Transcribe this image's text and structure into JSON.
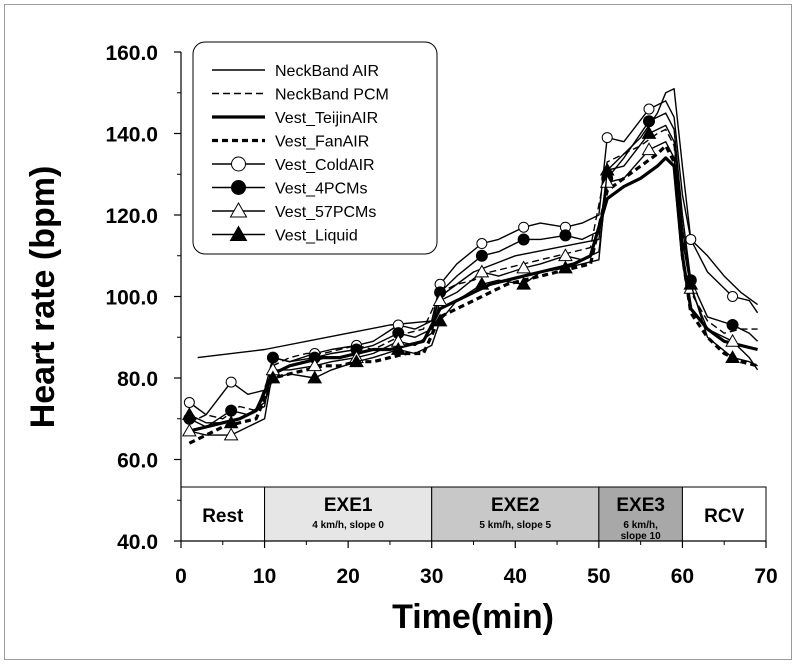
{
  "chart_data": {
    "type": "line",
    "xlabel": "Time(min)",
    "ylabel": "Heart rate (bpm)",
    "xlim": [
      0,
      70
    ],
    "ylim": [
      40,
      160
    ],
    "xticks": [
      "0",
      "10",
      "20",
      "30",
      "40",
      "50",
      "60",
      "70"
    ],
    "yticks": [
      "40.0",
      "60.0",
      "80.0",
      "100.0",
      "120.0",
      "140.0",
      "160.0"
    ],
    "grid": false,
    "legend_position": "top-left",
    "phases": [
      {
        "label": "Rest",
        "sub": "",
        "x0": 0,
        "x1": 10,
        "fill": "#ffffff"
      },
      {
        "label": "EXE1",
        "sub": "4 km/h, slope 0",
        "x0": 10,
        "x1": 30,
        "fill": "#e6e6e6"
      },
      {
        "label": "EXE2",
        "sub": "5 km/h, slope 5",
        "x0": 30,
        "x1": 50,
        "fill": "#c8c8c8"
      },
      {
        "label": "EXE3",
        "sub": "6 km/h,",
        "sub2": "slope 10",
        "x0": 50,
        "x1": 60,
        "fill": "#a8a8a8"
      },
      {
        "label": "RCV",
        "sub": "",
        "x0": 60,
        "x1": 70,
        "fill": "#ffffff"
      }
    ],
    "series": [
      {
        "name": "NeckBand AIR",
        "style": "thin",
        "marker": "none",
        "x": [
          2,
          10,
          20,
          25,
          30,
          31,
          35,
          40,
          45,
          50,
          51,
          55,
          57,
          58,
          59,
          60,
          61,
          63,
          65,
          67,
          69
        ],
        "y": [
          85,
          87,
          91,
          93,
          94,
          100,
          106,
          110,
          112,
          114,
          131,
          139,
          145,
          150,
          151,
          132,
          114,
          110,
          105,
          101,
          98
        ]
      },
      {
        "name": "NeckBand PCM",
        "style": "dashed",
        "marker": "none",
        "x": [
          1,
          3,
          5,
          7,
          9,
          11,
          13,
          15,
          17,
          19,
          21,
          23,
          25,
          27,
          29,
          31,
          33,
          35,
          37,
          39,
          41,
          43,
          45,
          47,
          49,
          51,
          53,
          55,
          57,
          58,
          59,
          60,
          61,
          63,
          65,
          67,
          69
        ],
        "y": [
          69,
          71,
          70,
          73,
          72,
          83,
          85,
          86,
          86,
          87,
          88,
          87,
          89,
          91,
          92,
          101,
          103,
          104,
          106,
          107,
          108,
          109,
          110,
          111,
          112,
          133,
          135,
          137,
          140,
          141,
          137,
          116,
          101,
          94,
          91,
          92,
          92
        ]
      },
      {
        "name": "Vest_TeijinAIR",
        "style": "thick",
        "marker": "none",
        "x": [
          1,
          3,
          5,
          7,
          9,
          11,
          13,
          15,
          17,
          19,
          21,
          23,
          25,
          27,
          29,
          31,
          33,
          35,
          37,
          39,
          41,
          43,
          45,
          47,
          49,
          51,
          53,
          55,
          57,
          58,
          59,
          60,
          61,
          63,
          65,
          67,
          69
        ],
        "y": [
          67,
          68,
          69,
          70,
          72,
          81,
          83,
          84,
          85,
          85,
          86,
          87,
          87,
          88,
          89,
          97,
          99,
          101,
          103,
          104,
          105,
          106,
          107,
          108,
          110,
          124,
          127,
          129,
          132,
          134,
          132,
          110,
          97,
          92,
          89,
          88,
          87
        ]
      },
      {
        "name": "Vest_FanAIR",
        "style": "thickdashed",
        "marker": "none",
        "x": [
          1,
          3,
          5,
          7,
          9,
          11,
          13,
          15,
          17,
          19,
          21,
          23,
          25,
          27,
          29,
          31,
          33,
          35,
          37,
          39,
          41,
          43,
          45,
          47,
          49,
          51,
          53,
          55,
          57,
          58,
          59,
          60,
          61,
          63,
          65,
          67,
          69
        ],
        "y": [
          64,
          66,
          68,
          69,
          70,
          80,
          81,
          82,
          83,
          83,
          84,
          84,
          85,
          86,
          86,
          95,
          97,
          99,
          101,
          103,
          104,
          105,
          106,
          107,
          108,
          126,
          129,
          132,
          135,
          137,
          133,
          110,
          96,
          90,
          86,
          84,
          83
        ]
      },
      {
        "name": "Vest_ColdAIR",
        "style": "thin",
        "marker": "circle-open",
        "x": [
          1,
          3,
          6,
          8,
          10,
          11,
          13,
          16,
          18,
          21,
          23,
          26,
          28,
          30,
          31,
          33,
          36,
          38,
          41,
          43,
          46,
          48,
          50,
          51,
          53,
          56,
          58,
          59,
          60,
          61,
          63,
          66,
          68,
          69
        ],
        "y": [
          74,
          71,
          79,
          76,
          77,
          85,
          84,
          86,
          87,
          88,
          89,
          93,
          92,
          94,
          103,
          108,
          113,
          114,
          117,
          118,
          117,
          118,
          120,
          139,
          138,
          146,
          148,
          144,
          125,
          114,
          106,
          100,
          99,
          96
        ],
        "markers": [
          [
            1,
            74
          ],
          [
            6,
            79
          ],
          [
            11,
            85
          ],
          [
            16,
            86
          ],
          [
            21,
            88
          ],
          [
            26,
            93
          ],
          [
            31,
            103
          ],
          [
            36,
            113
          ],
          [
            41,
            117
          ],
          [
            46,
            117
          ],
          [
            51,
            139
          ],
          [
            56,
            146
          ],
          [
            61,
            114
          ],
          [
            66,
            100
          ]
        ]
      },
      {
        "name": "Vest_4PCMs",
        "style": "thin",
        "marker": "circle-filled",
        "x": [
          1,
          3,
          6,
          8,
          10,
          11,
          13,
          16,
          18,
          21,
          23,
          26,
          28,
          30,
          31,
          33,
          36,
          38,
          41,
          43,
          46,
          48,
          50,
          51,
          53,
          56,
          58,
          59,
          60,
          61,
          63,
          66,
          68,
          69
        ],
        "y": [
          70,
          68,
          72,
          71,
          73,
          85,
          84,
          85,
          86,
          87,
          88,
          91,
          90,
          92,
          101,
          105,
          110,
          111,
          114,
          114,
          115,
          114,
          116,
          129,
          134,
          143,
          145,
          141,
          120,
          104,
          95,
          93,
          91,
          89
        ],
        "markers": [
          [
            1,
            70
          ],
          [
            6,
            72
          ],
          [
            11,
            85
          ],
          [
            16,
            85
          ],
          [
            21,
            87
          ],
          [
            26,
            91
          ],
          [
            31,
            101
          ],
          [
            36,
            110
          ],
          [
            41,
            114
          ],
          [
            46,
            115
          ],
          [
            51,
            129
          ],
          [
            56,
            143
          ],
          [
            61,
            104
          ],
          [
            66,
            93
          ]
        ]
      },
      {
        "name": "Vest_57PCMs",
        "style": "thin",
        "marker": "triangle-open",
        "x": [
          1,
          3,
          6,
          8,
          10,
          11,
          13,
          16,
          18,
          21,
          23,
          26,
          28,
          30,
          31,
          33,
          36,
          38,
          41,
          43,
          46,
          48,
          50,
          51,
          53,
          56,
          58,
          59,
          60,
          61,
          63,
          66,
          68,
          69
        ],
        "y": [
          67,
          66,
          66,
          68,
          70,
          82,
          82,
          83,
          84,
          85,
          86,
          89,
          88,
          91,
          99,
          101,
          106,
          105,
          107,
          108,
          110,
          109,
          111,
          128,
          129,
          136,
          138,
          134,
          114,
          102,
          92,
          89,
          85,
          82
        ],
        "markers": [
          [
            1,
            67
          ],
          [
            6,
            66
          ],
          [
            11,
            82
          ],
          [
            16,
            83
          ],
          [
            21,
            85
          ],
          [
            26,
            89
          ],
          [
            31,
            99
          ],
          [
            36,
            106
          ],
          [
            41,
            107
          ],
          [
            46,
            110
          ],
          [
            51,
            128
          ],
          [
            56,
            136
          ],
          [
            61,
            102
          ],
          [
            66,
            89
          ]
        ]
      },
      {
        "name": "Vest_Liquid",
        "style": "thin",
        "marker": "triangle-filled",
        "x": [
          1,
          3,
          6,
          8,
          10,
          11,
          13,
          16,
          18,
          21,
          23,
          26,
          28,
          30,
          31,
          33,
          36,
          38,
          41,
          43,
          46,
          48,
          50,
          51,
          53,
          56,
          58,
          59,
          60,
          61,
          63,
          66,
          68,
          69
        ],
        "y": [
          71,
          69,
          69,
          71,
          74,
          80,
          81,
          80,
          82,
          84,
          85,
          87,
          86,
          88,
          94,
          99,
          103,
          104,
          103,
          106,
          107,
          108,
          109,
          131,
          132,
          140,
          142,
          138,
          117,
          103,
          90,
          85,
          84,
          83
        ],
        "markers": [
          [
            1,
            71
          ],
          [
            6,
            69
          ],
          [
            11,
            80
          ],
          [
            16,
            80
          ],
          [
            21,
            84
          ],
          [
            26,
            87
          ],
          [
            31,
            94
          ],
          [
            36,
            103
          ],
          [
            41,
            103
          ],
          [
            46,
            107
          ],
          [
            51,
            131
          ],
          [
            56,
            140
          ],
          [
            61,
            103
          ],
          [
            66,
            85
          ]
        ]
      }
    ]
  }
}
